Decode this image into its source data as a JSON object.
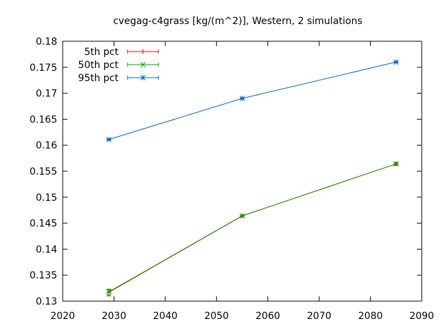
{
  "chart_data": {
    "type": "line",
    "title": "cvegag-c4grass [kg/(m^2)], Western, 2 simulations",
    "xlabel": "",
    "ylabel": "",
    "xlim": [
      2020,
      2090
    ],
    "ylim": [
      0.13,
      0.18
    ],
    "x_ticks": [
      "2020",
      "2030",
      "2040",
      "2050",
      "2060",
      "2070",
      "2080",
      "2090"
    ],
    "y_ticks": [
      "0.13",
      "0.135",
      "0.14",
      "0.145",
      "0.15",
      "0.155",
      "0.16",
      "0.165",
      "0.17",
      "0.175",
      "0.18"
    ],
    "grid": false,
    "legend_position": "top-left",
    "x": [
      2029,
      2055,
      2085
    ],
    "series": [
      {
        "name": "5th pct",
        "color": "#ff0000",
        "marker": "plus",
        "values": [
          0.1317,
          0.1464,
          0.1564
        ],
        "err_low": [
          0.1312,
          0.1462,
          0.1562
        ],
        "err_high": [
          0.1322,
          0.1466,
          0.1566
        ]
      },
      {
        "name": "50th pct",
        "color": "#00a000",
        "marker": "cross",
        "values": [
          0.1318,
          0.1464,
          0.1564
        ],
        "err_low": [
          0.131,
          0.1462,
          0.1561
        ],
        "err_high": [
          0.1323,
          0.1466,
          0.1567
        ]
      },
      {
        "name": "95th pct",
        "color": "#0066cc",
        "marker": "star",
        "values": [
          0.1611,
          0.169,
          0.176
        ],
        "err_low": [
          0.161,
          0.1689,
          0.1759
        ],
        "err_high": [
          0.1612,
          0.1691,
          0.1761
        ]
      }
    ]
  }
}
